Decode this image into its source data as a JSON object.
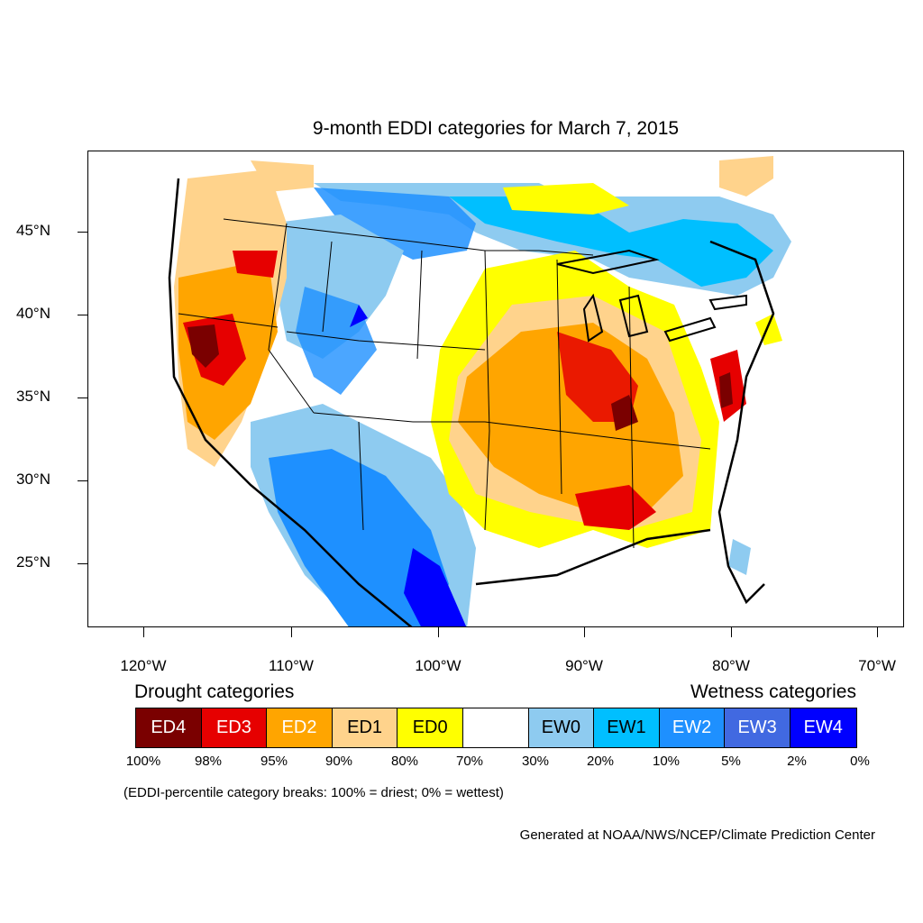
{
  "title": "9-month EDDI categories for March 7, 2015",
  "y_axis": {
    "ticks": [
      "45°N",
      "40°N",
      "35°N",
      "30°N",
      "25°N"
    ]
  },
  "x_axis": {
    "ticks": [
      "120°W",
      "110°W",
      "100°W",
      "90°W",
      "80°W",
      "70°W"
    ]
  },
  "legend": {
    "drought_heading": "Drought categories",
    "wetness_heading": "Wetness categories",
    "categories": [
      {
        "label": "ED4",
        "color": "#7a0000",
        "text_color": "#ffffff"
      },
      {
        "label": "ED3",
        "color": "#e60000",
        "text_color": "#ffffff"
      },
      {
        "label": "ED2",
        "color": "#ffa500",
        "text_color": "#ffffff"
      },
      {
        "label": "ED1",
        "color": "#ffd38c",
        "text_color": "#000000"
      },
      {
        "label": "ED0",
        "color": "#ffff00",
        "text_color": "#000000"
      },
      {
        "label": "",
        "color": "#ffffff",
        "text_color": "#000000"
      },
      {
        "label": "EW0",
        "color": "#8ecbf0",
        "text_color": "#000000"
      },
      {
        "label": "EW1",
        "color": "#00bfff",
        "text_color": "#000000"
      },
      {
        "label": "EW2",
        "color": "#1e90ff",
        "text_color": "#ffffff"
      },
      {
        "label": "EW3",
        "color": "#4169e1",
        "text_color": "#ffffff"
      },
      {
        "label": "EW4",
        "color": "#0000ff",
        "text_color": "#ffffff"
      }
    ],
    "breaks": [
      "100%",
      "98%",
      "95%",
      "90%",
      "80%",
      "70%",
      "30%",
      "20%",
      "10%",
      "5%",
      "2%",
      "0%"
    ]
  },
  "note": "(EDDI-percentile category breaks: 100% = driest; 0% = wettest)",
  "credit": "Generated at NOAA/NWS/NCEP/Climate Prediction Center"
}
